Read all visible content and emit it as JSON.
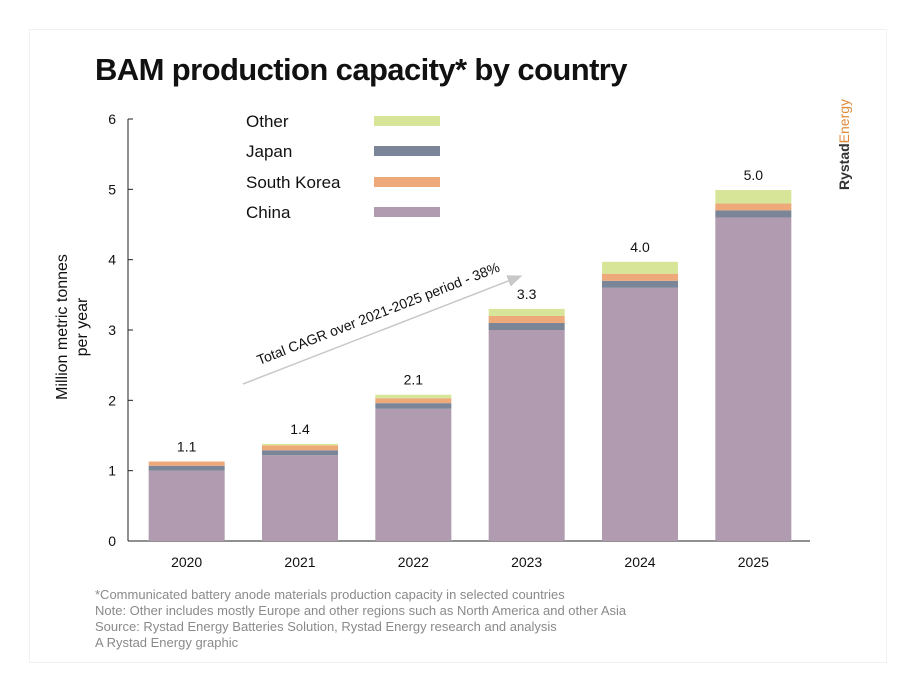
{
  "header": {
    "title": "BAM production capacity* by country",
    "brand_bold": "Rystad",
    "brand_light": "Energy"
  },
  "colors": {
    "China": "#b19bb0",
    "South Korea": "#eea97a",
    "Japan": "#7a8698",
    "Other": "#d6e597"
  },
  "chart_data": {
    "type": "bar",
    "stacked": true,
    "title": "BAM production capacity* by country",
    "xlabel": "",
    "ylabel": [
      "Million metric tonnes",
      "per year"
    ],
    "ylim": [
      0,
      6
    ],
    "yticks": [
      0,
      1,
      2,
      3,
      4,
      5,
      6
    ],
    "categories": [
      "2020",
      "2021",
      "2022",
      "2023",
      "2024",
      "2025"
    ],
    "series": [
      {
        "name": "China",
        "values": [
          1.0,
          1.22,
          1.88,
          3.0,
          3.6,
          4.6
        ]
      },
      {
        "name": "Japan",
        "values": [
          0.07,
          0.07,
          0.08,
          0.1,
          0.1,
          0.1
        ]
      },
      {
        "name": "South Korea",
        "values": [
          0.06,
          0.07,
          0.07,
          0.1,
          0.1,
          0.1
        ]
      },
      {
        "name": "Other",
        "values": [
          0.0,
          0.02,
          0.05,
          0.1,
          0.17,
          0.19
        ]
      }
    ],
    "totals": [
      "1.1",
      "1.4",
      "2.1",
      "3.3",
      "4.0",
      "5.0"
    ],
    "legend_order": [
      "Other",
      "Japan",
      "South Korea",
      "China"
    ],
    "legend_position": "top-left",
    "annotation": "Total CAGR over 2021-2025 period - 38%",
    "grid": false
  },
  "footnotes": [
    "*Communicated battery anode materials production capacity in selected countries",
    "Note: Other includes mostly Europe and other regions such as North America and other Asia",
    "Source: Rystad Energy Batteries Solution, Rystad Energy research and analysis",
    "A Rystad Energy graphic"
  ]
}
